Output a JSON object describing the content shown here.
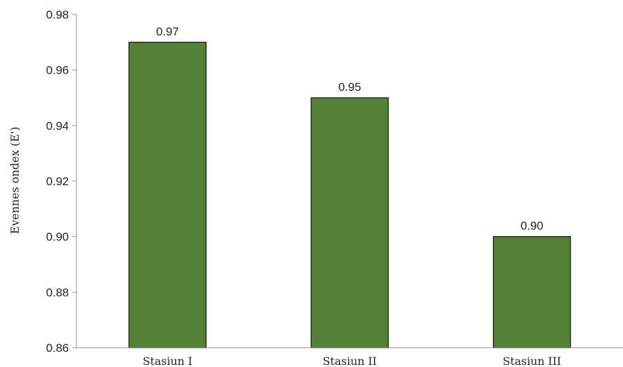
{
  "chart_data": {
    "type": "bar",
    "title": "",
    "xlabel": "",
    "ylabel": "Evennes ondex (E')",
    "categories": [
      "Stasiun I",
      "Stasiun II",
      "Stasiun III"
    ],
    "values": [
      0.97,
      0.95,
      0.9
    ],
    "data_labels": [
      "0.97",
      "0.95",
      "0.90"
    ],
    "ylim": [
      0.86,
      0.98
    ],
    "yticks": [
      0.86,
      0.88,
      0.9,
      0.92,
      0.94,
      0.96,
      0.98
    ],
    "ytick_labels": [
      "0.86",
      "0.88",
      "0.90",
      "0.92",
      "0.94",
      "0.96",
      "0.98"
    ],
    "grid": false,
    "legend": "none",
    "colors": {
      "bar": "#538135",
      "bar_edge": "#1a1a1a",
      "axis": "#8c8c8c"
    }
  }
}
